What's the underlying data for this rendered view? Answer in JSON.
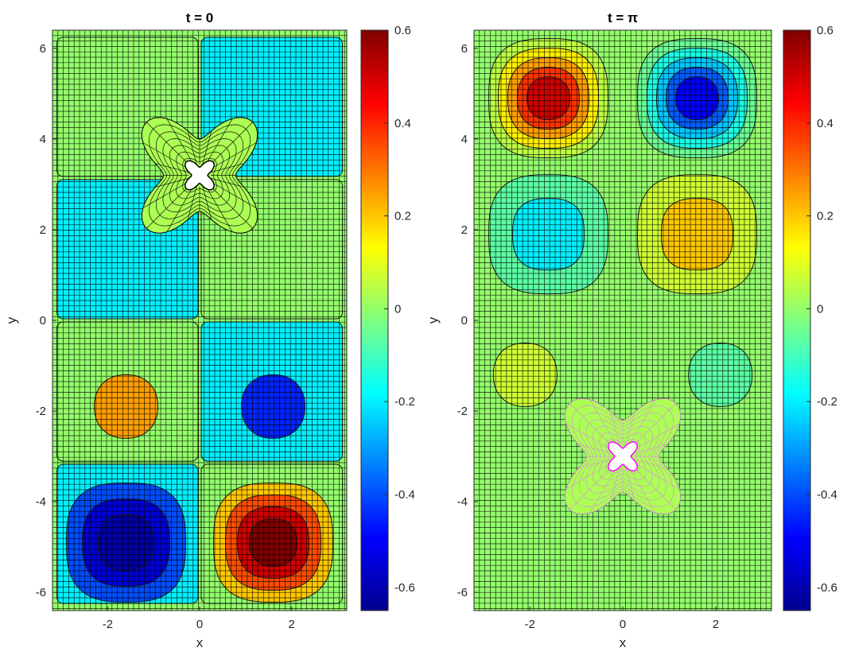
{
  "chart_data": [
    {
      "type": "heatmap",
      "subtype": "filled-contour-with-mesh-overlay",
      "title": "t = 0",
      "xlabel": "x",
      "ylabel": "y",
      "xlim": [
        -3.2,
        3.2
      ],
      "ylim": [
        -6.4,
        6.4
      ],
      "x_ticks": [
        -2,
        0,
        2
      ],
      "x_tick_labels": [
        "-2",
        "0",
        "2"
      ],
      "y_ticks": [
        -6,
        -4,
        -2,
        0,
        2,
        4,
        6
      ],
      "y_tick_labels": [
        "-6",
        "-4",
        "-2",
        "0",
        "2",
        "4",
        "6"
      ],
      "colorbar": {
        "colormap": "jet",
        "clim": [
          -0.65,
          0.6
        ],
        "ticks": [
          -0.6,
          -0.4,
          -0.2,
          0,
          0.2,
          0.4,
          0.6
        ],
        "tick_labels": [
          "-0.6",
          "-0.4",
          "-0.2",
          "0",
          "0.2",
          "0.4",
          "0.6"
        ]
      },
      "regions": [
        {
          "x": [
            -3.14,
            0
          ],
          "y": [
            3.14,
            6.28
          ],
          "value": 0.0
        },
        {
          "x": [
            0,
            3.14
          ],
          "y": [
            3.14,
            6.28
          ],
          "value": -0.2
        },
        {
          "x": [
            -3.14,
            0
          ],
          "y": [
            0,
            3.14
          ],
          "value": -0.2
        },
        {
          "x": [
            0,
            3.14
          ],
          "y": [
            0,
            3.14
          ],
          "value": 0.0
        },
        {
          "x": [
            -3.14,
            0
          ],
          "y": [
            -3.14,
            0
          ],
          "value": 0.0
        },
        {
          "x": [
            0,
            3.14
          ],
          "y": [
            -3.14,
            0
          ],
          "value": -0.2
        },
        {
          "x": [
            -3.14,
            0
          ],
          "y": [
            -6.28,
            -3.14
          ],
          "value": -0.2
        },
        {
          "x": [
            0,
            3.14
          ],
          "y": [
            -6.28,
            -3.14
          ],
          "value": 0.0
        }
      ],
      "blobs": [
        {
          "x": -1.6,
          "y": -1.9,
          "levels": [
            0.25
          ]
        },
        {
          "x": 1.6,
          "y": -1.9,
          "levels": [
            -0.45
          ]
        },
        {
          "x": -1.6,
          "y": -4.9,
          "levels": [
            -0.4,
            -0.55,
            -0.62
          ]
        },
        {
          "x": 1.6,
          "y": -4.9,
          "levels": [
            0.2,
            0.35,
            0.5,
            0.6
          ]
        }
      ],
      "particle": {
        "x": 0.0,
        "y": 3.2
      }
    },
    {
      "type": "heatmap",
      "subtype": "filled-contour-with-mesh-overlay",
      "title": "t = π",
      "xlabel": "x",
      "ylabel": "y",
      "xlim": [
        -3.2,
        3.2
      ],
      "ylim": [
        -6.4,
        6.4
      ],
      "x_ticks": [
        -2,
        0,
        2
      ],
      "x_tick_labels": [
        "-2",
        "0",
        "2"
      ],
      "y_ticks": [
        -6,
        -4,
        -2,
        0,
        2,
        4,
        6
      ],
      "y_tick_labels": [
        "-6",
        "-4",
        "-2",
        "0",
        "2",
        "4",
        "6"
      ],
      "colorbar": {
        "colormap": "jet",
        "clim": [
          -0.65,
          0.6
        ],
        "ticks": [
          -0.6,
          -0.4,
          -0.2,
          0,
          0.2,
          0.4,
          0.6
        ],
        "tick_labels": [
          "-0.6",
          "-0.4",
          "-0.2",
          "0",
          "0.2",
          "0.4",
          "0.6"
        ]
      },
      "regions": [],
      "blobs": [
        {
          "x": -1.6,
          "y": 4.9,
          "levels": [
            0.05,
            0.15,
            0.25,
            0.38,
            0.5
          ]
        },
        {
          "x": 1.6,
          "y": 4.9,
          "levels": [
            -0.05,
            -0.15,
            -0.25,
            -0.38,
            -0.5
          ]
        },
        {
          "x": -1.6,
          "y": 1.9,
          "levels": [
            -0.07,
            -0.2
          ]
        },
        {
          "x": 1.6,
          "y": 1.9,
          "levels": [
            0.07,
            0.2
          ]
        },
        {
          "x": -2.1,
          "y": -1.2,
          "levels": [
            0.07
          ]
        },
        {
          "x": 2.1,
          "y": -1.2,
          "levels": [
            -0.07
          ]
        }
      ],
      "particle": {
        "x": 0.0,
        "y": -3.0
      }
    }
  ]
}
